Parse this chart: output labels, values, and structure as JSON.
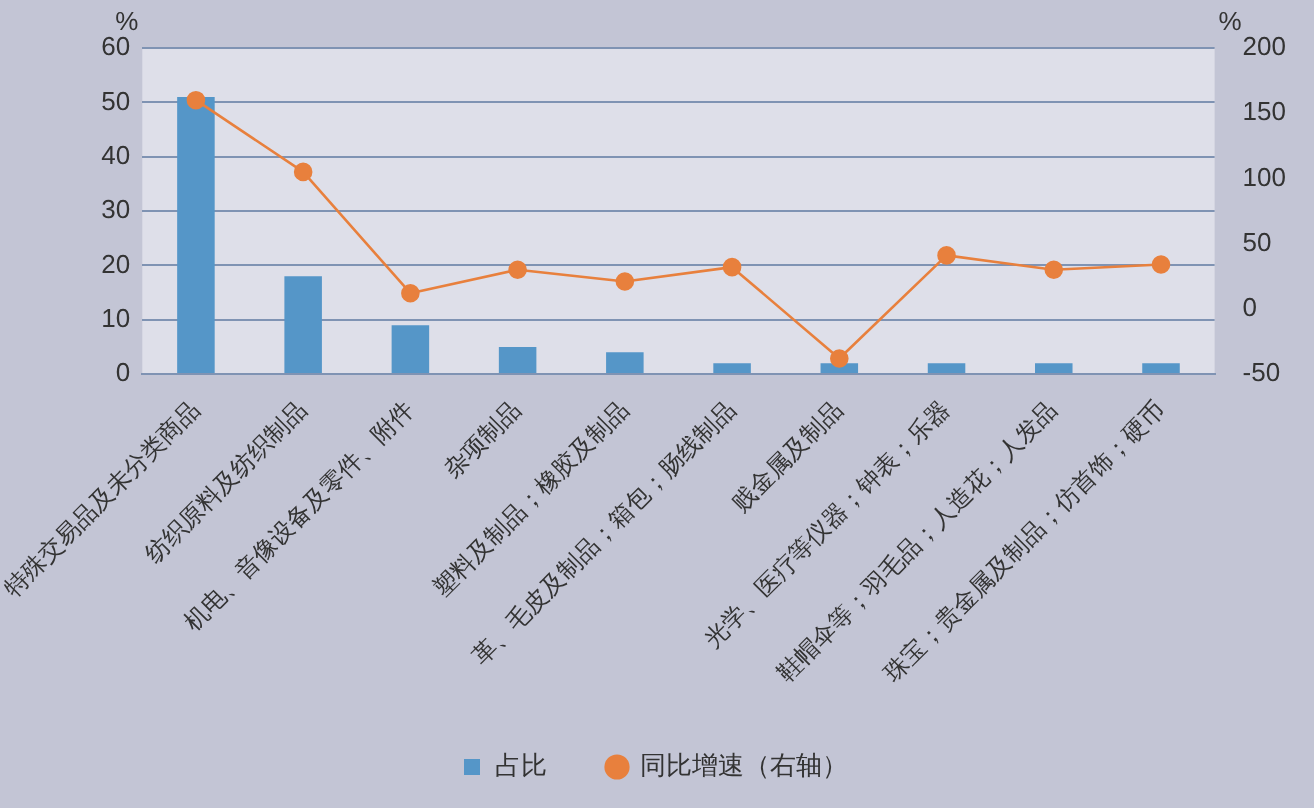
{
  "chart_data": {
    "type": "bar",
    "categories": [
      "特殊交易品及未分类商品",
      "纺织原料及纺织制品",
      "机电、音像设备及零件、附件",
      "杂项制品",
      "塑料及制品；橡胶及制品",
      "革、毛皮及制品；箱包；肠线制品",
      "贱金属及制品",
      "光学、医疗等仪器；钟表；乐器",
      "鞋帽伞等；羽毛品；人造花；人发品",
      "珠宝；贵金属及制品；仿首饰；硬币"
    ],
    "series": [
      {
        "name": "占比",
        "color": "#5596c8",
        "values": [
          51,
          18,
          9,
          5,
          4,
          2,
          2,
          2,
          2,
          2
        ]
      },
      {
        "name": "同比增速（右轴）",
        "type": "line",
        "axis": "y2",
        "color": "#e8803d",
        "values": [
          160,
          105,
          12,
          30,
          21,
          32,
          -38,
          41,
          30,
          34
        ]
      }
    ],
    "ylabel": "%",
    "y2label": "%",
    "ylim": [
      0,
      60
    ],
    "yticks": [
      0,
      10,
      20,
      30,
      40,
      50,
      60
    ],
    "y2lim": [
      -50,
      200
    ],
    "y2ticks": [
      -50,
      0,
      50,
      100,
      150,
      200
    ],
    "grid": "y",
    "legend": "bottom",
    "marker": "circle",
    "line_style": "solid"
  }
}
